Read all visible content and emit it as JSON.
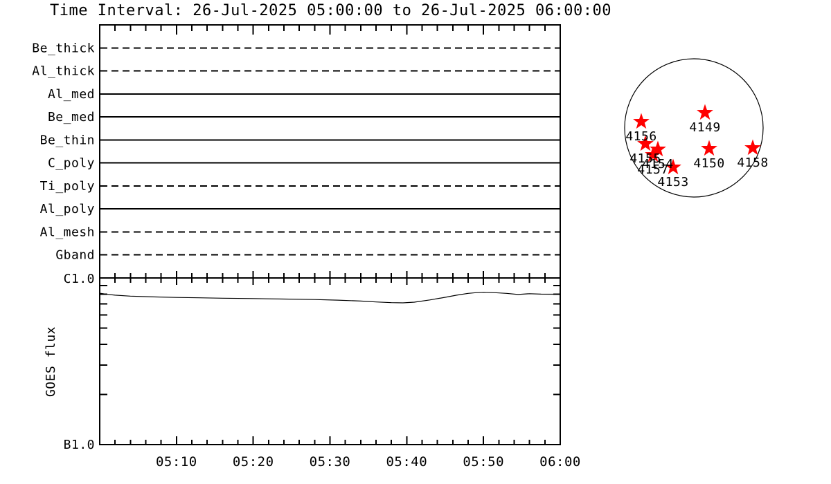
{
  "title": "Time Interval: 26-Jul-2025 05:00:00 to 26-Jul-2025 06:00:00",
  "colors": {
    "background": "#ffffff",
    "axis": "#000000",
    "text": "#000000",
    "star": "#ff0000"
  },
  "chart_data": [
    {
      "type": "line",
      "id": "xrt-filter-timeline",
      "description": "Horizontal availability line per filter spanning the whole interval",
      "categories": [
        "Be_thick",
        "Al_thick",
        "Al_med",
        "Be_med",
        "Be_thin",
        "C_poly",
        "Ti_poly",
        "Al_poly",
        "Al_mesh",
        "Gband"
      ],
      "linestyles": [
        "dashed",
        "dashed",
        "solid",
        "solid",
        "solid",
        "solid",
        "dashed",
        "solid",
        "dashed",
        "dashed"
      ],
      "x_range": [
        "05:00",
        "06:00"
      ],
      "grid": false,
      "legend": false
    },
    {
      "type": "line",
      "id": "goes-flux",
      "ylabel": "GOES flux",
      "yscale": "log",
      "ylim": [
        1e-07,
        1e-06
      ],
      "ytick_labels": [
        "B1.0",
        "C1.0"
      ],
      "xlim_minutes_after_0500": [
        0,
        60
      ],
      "xticks_minutes": [
        10,
        20,
        30,
        40,
        50,
        60
      ],
      "xtick_labels": [
        "05:10",
        "05:20",
        "05:30",
        "05:40",
        "05:50",
        "06:00"
      ],
      "x_minutes": [
        0,
        1,
        2,
        4,
        7,
        10,
        13,
        16,
        20,
        24,
        28,
        31,
        34,
        36,
        38,
        39.5,
        41,
        43,
        45,
        46.5,
        48,
        49,
        50,
        51.5,
        53,
        54.5,
        56,
        57.5,
        59,
        60
      ],
      "flux_wm2": [
        8.1e-07,
        7.97e-07,
        7.88e-07,
        7.78e-07,
        7.7e-07,
        7.64e-07,
        7.6e-07,
        7.56e-07,
        7.52e-07,
        7.47e-07,
        7.42e-07,
        7.36e-07,
        7.27e-07,
        7.18e-07,
        7.11e-07,
        7.09e-07,
        7.16e-07,
        7.38e-07,
        7.65e-07,
        7.88e-07,
        8.08e-07,
        8.16e-07,
        8.2e-07,
        8.16e-07,
        8.08e-07,
        7.96e-07,
        8.04e-07,
        8e-07,
        7.99e-07,
        7.98e-07
      ],
      "grid": false,
      "legend": false
    },
    {
      "type": "scatter",
      "id": "solar-disk-active-regions",
      "description": "Red stars mark NOAA active regions on the solar disk; x,y are fractions of disk radius (+x west, +y south)",
      "points": [
        {
          "label": "4149",
          "x": 0.16,
          "y": -0.22
        },
        {
          "label": "4150",
          "x": 0.22,
          "y": 0.3
        },
        {
          "label": "4153",
          "x": -0.3,
          "y": 0.57
        },
        {
          "label": "4154",
          "x": -0.52,
          "y": 0.31
        },
        {
          "label": "4155",
          "x": -0.7,
          "y": 0.23
        },
        {
          "label": "4156",
          "x": -0.76,
          "y": -0.09
        },
        {
          "label": "4157",
          "x": -0.59,
          "y": 0.39
        },
        {
          "label": "4158",
          "x": 0.85,
          "y": 0.29
        }
      ]
    }
  ]
}
